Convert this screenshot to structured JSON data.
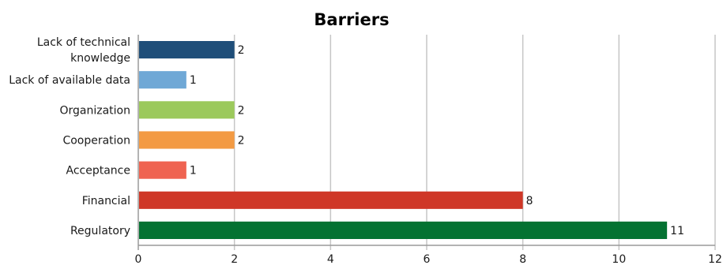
{
  "chart_data": {
    "type": "bar",
    "orientation": "horizontal",
    "title": "Barriers",
    "xlabel": "",
    "ylabel": "",
    "xlim": [
      0,
      12
    ],
    "x_ticks": [
      0,
      2,
      4,
      6,
      8,
      10,
      12
    ],
    "grid": "vertical",
    "legend": "none",
    "categories": [
      [
        "Lack of technical",
        "knowledge"
      ],
      [
        "Lack of available data"
      ],
      [
        "Organization"
      ],
      [
        "Cooperation"
      ],
      [
        "Acceptance"
      ],
      [
        "Financial"
      ],
      [
        "Regulatory"
      ]
    ],
    "values": [
      2,
      1,
      2,
      2,
      1,
      8,
      11
    ],
    "colors": [
      "#1f4e79",
      "#6fa8d6",
      "#9bc95b",
      "#f39a43",
      "#ef6351",
      "#cf3727",
      "#047232"
    ],
    "axis_color": "#9a9a9a",
    "grid_color": "#c6c6c6"
  }
}
